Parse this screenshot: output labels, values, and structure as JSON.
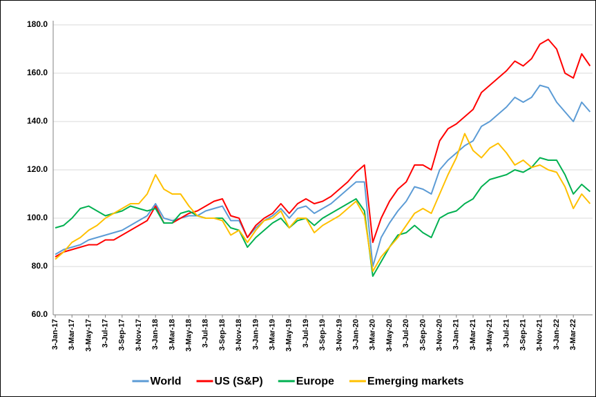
{
  "chart_data": {
    "type": "line",
    "categories": [
      "3-Jan-17",
      null,
      "3-Mar-17",
      null,
      "3-May-17",
      null,
      "3-Jul-17",
      null,
      "3-Sep-17",
      null,
      "3-Nov-17",
      null,
      "3-Jan-18",
      null,
      "3-Mar-18",
      null,
      "3-May-18",
      null,
      "3-Jul-18",
      null,
      "3-Sep-18",
      null,
      "3-Nov-18",
      null,
      "3-Jan-19",
      null,
      "3-Mar-19",
      null,
      "3-May-19",
      null,
      "3-Jul-19",
      null,
      "3-Sep-19",
      null,
      "3-Nov-19",
      null,
      "3-Jan-20",
      null,
      "3-Mar-20",
      null,
      "3-May-20",
      null,
      "3-Jul-20",
      null,
      "3-Sep-20",
      null,
      "3-Nov-20",
      null,
      "3-Jan-21",
      null,
      "3-Mar-21",
      null,
      "3-May-21",
      null,
      "3-Jul-21",
      null,
      "3-Sep-21",
      null,
      "3-Nov-21",
      null,
      "3-Jan-22",
      null,
      "3-Mar-22",
      null,
      null
    ],
    "series": [
      {
        "name": "World",
        "color": "#5b9bd5",
        "values": [
          85,
          87,
          88,
          89,
          91,
          92,
          93,
          94,
          95,
          97,
          99,
          101,
          106,
          100,
          99,
          100,
          101,
          101,
          103,
          104,
          105,
          99,
          99,
          92,
          96,
          99,
          101,
          104,
          100,
          104,
          105,
          102,
          104,
          106,
          109,
          112,
          115,
          115,
          80,
          92,
          98,
          103,
          107,
          113,
          112,
          110,
          120,
          124,
          127,
          130,
          132,
          138,
          140,
          143,
          146,
          150,
          148,
          150,
          155,
          154,
          148,
          144,
          140,
          148,
          144
        ]
      },
      {
        "name": "US (S&P)",
        "color": "#ff0000",
        "values": [
          84,
          86,
          87,
          88,
          89,
          89,
          91,
          91,
          93,
          95,
          97,
          99,
          105,
          98,
          98,
          100,
          102,
          103,
          105,
          107,
          108,
          101,
          100,
          92,
          97,
          100,
          102,
          106,
          102,
          106,
          108,
          106,
          107,
          109,
          112,
          115,
          119,
          122,
          90,
          100,
          107,
          112,
          115,
          122,
          122,
          120,
          132,
          137,
          139,
          142,
          145,
          152,
          155,
          158,
          161,
          165,
          163,
          166,
          172,
          174,
          170,
          160,
          158,
          168,
          163
        ]
      },
      {
        "name": "Europe",
        "color": "#00b050",
        "values": [
          96,
          97,
          100,
          104,
          105,
          103,
          101,
          102,
          103,
          105,
          104,
          103,
          104,
          98,
          98,
          102,
          103,
          101,
          100,
          100,
          100,
          96,
          95,
          88,
          92,
          95,
          98,
          100,
          96,
          99,
          100,
          97,
          100,
          102,
          104,
          106,
          108,
          103,
          76,
          82,
          88,
          93,
          94,
          97,
          94,
          92,
          100,
          102,
          103,
          106,
          108,
          113,
          116,
          117,
          118,
          120,
          119,
          121,
          125,
          124,
          124,
          118,
          110,
          114,
          111
        ]
      },
      {
        "name": "Emerging markets",
        "color": "#ffc000",
        "values": [
          83,
          86,
          90,
          92,
          95,
          97,
          100,
          102,
          104,
          106,
          106,
          110,
          118,
          112,
          110,
          110,
          105,
          101,
          100,
          100,
          99,
          93,
          95,
          90,
          95,
          99,
          100,
          103,
          96,
          100,
          100,
          94,
          97,
          99,
          101,
          104,
          107,
          101,
          78,
          84,
          88,
          92,
          97,
          102,
          104,
          102,
          110,
          118,
          125,
          135,
          128,
          125,
          129,
          131,
          127,
          122,
          124,
          121,
          122,
          120,
          119,
          113,
          104,
          110,
          106
        ]
      }
    ],
    "ylim": [
      60,
      180
    ],
    "yticks": [
      {
        "value": 60,
        "label": "60.0"
      },
      {
        "value": 80,
        "label": "80.0"
      },
      {
        "value": 100,
        "label": "100.0"
      },
      {
        "value": 120,
        "label": "120.0"
      },
      {
        "value": 140,
        "label": "140.0"
      },
      {
        "value": 160,
        "label": "160.0"
      },
      {
        "value": 180,
        "label": "180.0"
      }
    ],
    "grid": true,
    "legend": "bottom"
  }
}
